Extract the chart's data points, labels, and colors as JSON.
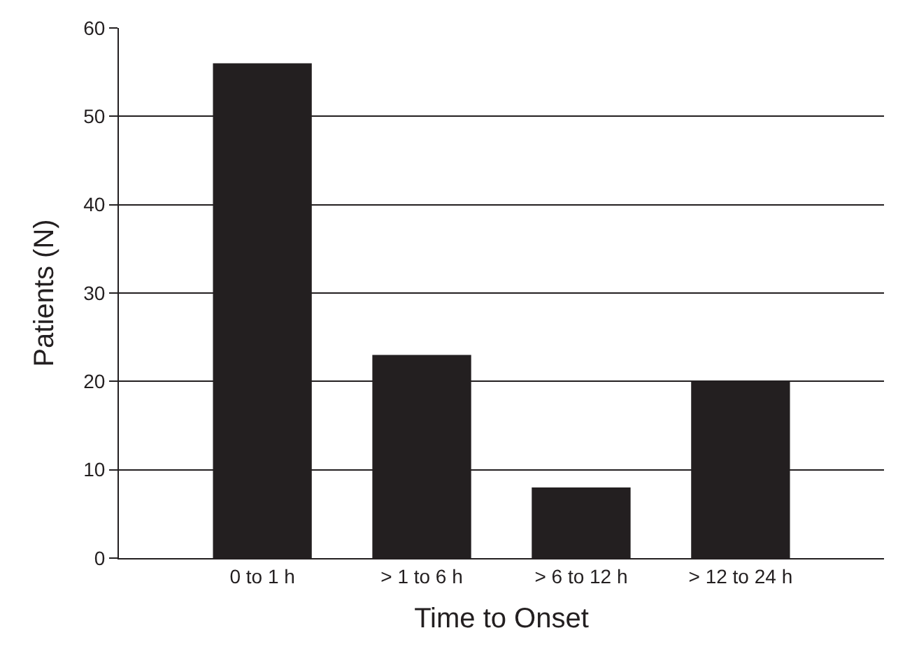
{
  "chart_data": {
    "type": "bar",
    "xlabel": "Time to Onset",
    "ylabel": "Patients (N)",
    "categories": [
      "0 to 1 h",
      "> 1 to 6 h",
      "> 6 to 12 h",
      "> 12 to 24 h"
    ],
    "values": [
      56,
      23,
      8,
      20
    ],
    "color": "#231f20",
    "ylim": [
      0,
      60
    ],
    "yticks": [
      0,
      10,
      20,
      30,
      40,
      50,
      60
    ],
    "grid": "y"
  }
}
